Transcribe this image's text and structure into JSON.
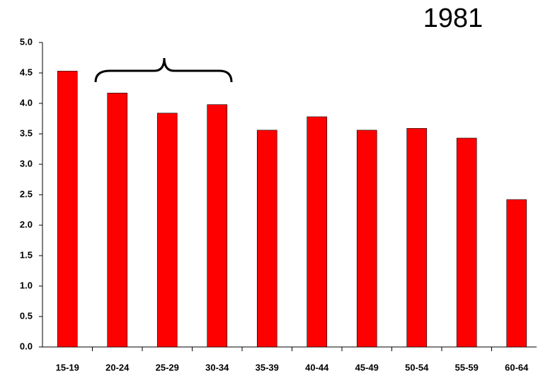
{
  "chart_data": {
    "type": "bar",
    "title": "1981",
    "categories": [
      "15-19",
      "20-24",
      "25-29",
      "30-34",
      "35-39",
      "40-44",
      "45-49",
      "50-54",
      "55-59",
      "60-64"
    ],
    "values": [
      4.53,
      4.17,
      3.84,
      3.98,
      3.56,
      3.78,
      3.56,
      3.59,
      3.43,
      2.42
    ],
    "color": "#ff0000",
    "ylim": [
      0,
      5
    ],
    "yticks": [
      {
        "value": 0,
        "label": "0.0"
      },
      {
        "value": 0.5,
        "label": "0.5"
      },
      {
        "value": 1,
        "label": "1.0"
      },
      {
        "value": 1.5,
        "label": "1.5"
      },
      {
        "value": 2,
        "label": "2.0"
      },
      {
        "value": 2.5,
        "label": "2.5"
      },
      {
        "value": 3,
        "label": "3.0"
      },
      {
        "value": 3.5,
        "label": "3.5"
      },
      {
        "value": 4,
        "label": "4.0"
      },
      {
        "value": 4.5,
        "label": "4.5"
      },
      {
        "value": 5,
        "label": "5.0"
      }
    ],
    "grid": false
  }
}
